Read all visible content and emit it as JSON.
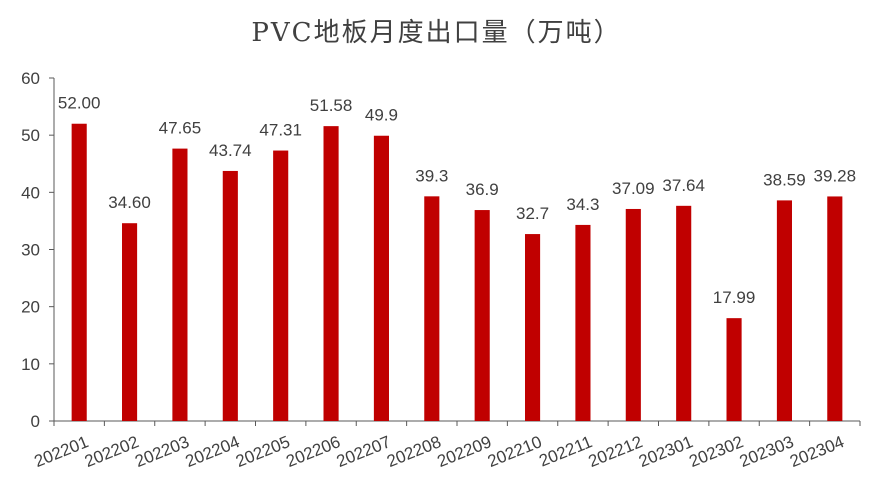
{
  "chart_data": {
    "type": "bar",
    "title": "PVC地板月度出口量（万吨）",
    "xlabel": "",
    "ylabel": "",
    "ylim": [
      0,
      60
    ],
    "yticks": [
      0,
      10,
      20,
      30,
      40,
      50,
      60
    ],
    "grid": false,
    "legend": "none",
    "bar_color": "#C00000",
    "categories": [
      "202201",
      "202202",
      "202203",
      "202204",
      "202205",
      "202206",
      "202207",
      "202208",
      "202209",
      "202210",
      "202211",
      "202212",
      "202301",
      "202302",
      "202303",
      "202304"
    ],
    "values": [
      52.0,
      34.6,
      47.65,
      43.74,
      47.31,
      51.58,
      49.9,
      39.3,
      36.9,
      32.7,
      34.3,
      37.09,
      37.64,
      17.99,
      38.59,
      39.28
    ],
    "value_labels": [
      "52.00",
      "34.60",
      "47.65",
      "43.74",
      "47.31",
      "51.58",
      "49.9",
      "39.3",
      "36.9",
      "32.7",
      "34.3",
      "37.09",
      "37.64",
      "17.99",
      "38.59",
      "39.28"
    ]
  }
}
